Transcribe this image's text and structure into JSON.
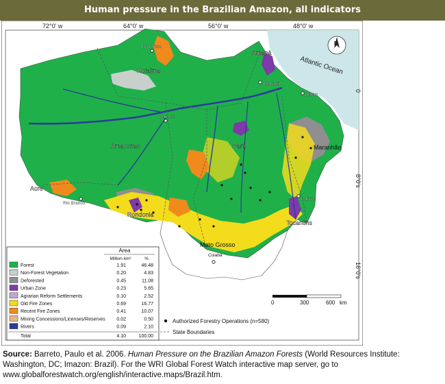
{
  "title": "Human pressure in the Brazilian Amazon, all indicators",
  "map": {
    "longitude_labels": [
      "72°0' w",
      "64°0' w",
      "56°0' w",
      "48°0' w"
    ],
    "latitude_labels": [
      "0",
      "8°0's",
      "16°0's"
    ],
    "ocean_label": "Atlantic Ocean",
    "compass_letter": "N",
    "states": [
      "Roraima",
      "Amapá",
      "Amazonas",
      "Pará",
      "Maranhão",
      "Acre",
      "Rondonia",
      "Tocantins",
      "Mato Grosso"
    ],
    "cities": [
      "Boa Vista",
      "Macapá",
      "Belém",
      "Manaus",
      "Rio Branco",
      "Palmas",
      "Cuiabá"
    ],
    "scalebar": {
      "ticks": [
        "0",
        "300",
        "600"
      ],
      "unit": "km"
    },
    "forestry_legend": "Authorized Forestry Operations (n=580)",
    "boundary_legend": "State Boundaries"
  },
  "legend": {
    "header": "Area",
    "col_unit_area": "Million km²",
    "col_unit_pct": "%",
    "rows": [
      {
        "label": "Forest",
        "area": "1.91",
        "pct": "46.48",
        "color": "#1fb04a"
      },
      {
        "label": "Non-Forest Vegetation",
        "area": "0.20",
        "pct": "4.83",
        "color": "#c8d0cc"
      },
      {
        "label": "Deforested",
        "area": "0.45",
        "pct": "11.08",
        "color": "#8f8f8f"
      },
      {
        "label": "Urban Zone",
        "area": "0.23",
        "pct": "5.65",
        "color": "#7d3aa8"
      },
      {
        "label": "Agrarian Reform Settlements",
        "area": "0.10",
        "pct": "2.52",
        "color": "#c2a6d6"
      },
      {
        "label": "Old Fire Zones",
        "area": "0.69",
        "pct": "16.77",
        "color": "#f2dc1c"
      },
      {
        "label": "Recent Fire Zones",
        "area": "0.41",
        "pct": "10.07",
        "color": "#f08a1c"
      },
      {
        "label": "Mining Concessions/Licenses/Reserves",
        "area": "0.02",
        "pct": "0.50",
        "color": "#e8b48a"
      },
      {
        "label": "Rivers",
        "area": "0.09",
        "pct": "2.10",
        "color": "#2a3d9a"
      }
    ],
    "total": {
      "label": "Total",
      "area": "4.10",
      "pct": "100.00"
    }
  },
  "caption": {
    "source_label": "Source:",
    "authors": " Barreto, Paulo et al. 2006. ",
    "work_title": "Human Pressure on the Brazilian Amazon Forests",
    "rest": " (World Resources Institute: Washington, DC; Imazon: Brazil). For the WRI Global Forest Watch interactive map server, go to www.globalforestwatch.org/english/interactive.maps/Brazil.htm."
  }
}
